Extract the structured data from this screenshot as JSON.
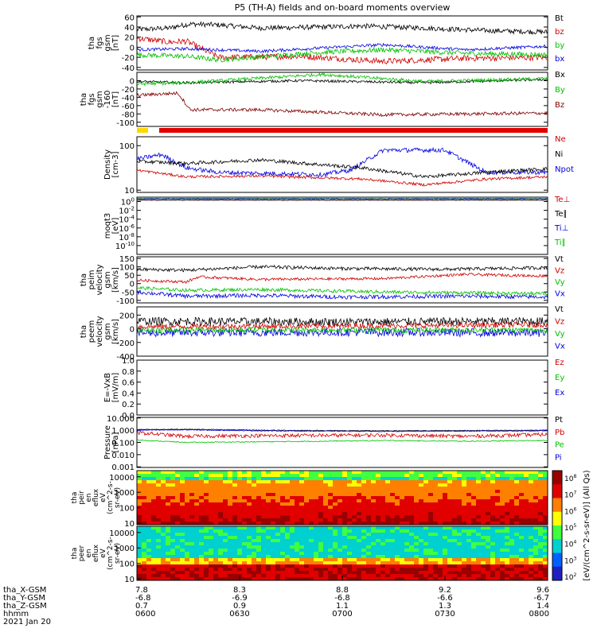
{
  "chart_data": {
    "type": "line",
    "title": "P5 (TH-A) fields and on-board moments overview",
    "footer": {
      "row_labels": [
        "tha_X-GSM",
        "tha_Y-GSM",
        "tha_Z-GSM",
        "hhmm"
      ],
      "date": "2021 Jan 20",
      "columns": [
        {
          "x": "7.8",
          "y": "-6.8",
          "z": "0.7",
          "t": "0600"
        },
        {
          "x": "8.3",
          "y": "-6.9",
          "z": "0.9",
          "t": "0630"
        },
        {
          "x": "8.8",
          "y": "-6.8",
          "z": "1.1",
          "t": "0700"
        },
        {
          "x": "9.2",
          "y": "-6.6",
          "z": "1.3",
          "t": "0730"
        },
        {
          "x": "9.6",
          "y": "-6.7",
          "z": "1.4",
          "t": "0800"
        }
      ]
    },
    "panels": [
      {
        "id": "fgs-gsm",
        "ylabel": [
          "tha",
          "fgs",
          "gsm",
          "[nT]"
        ],
        "ylim": [
          -45,
          62
        ],
        "ticks": [
          "60",
          "40",
          "20",
          "0",
          "-20",
          "-40"
        ],
        "tick_values": [
          60,
          40,
          20,
          0,
          -20,
          -40
        ],
        "legend": [
          {
            "name": "Bt",
            "color": "#000000"
          },
          {
            "name": "bz",
            "color": "#d00000"
          },
          {
            "name": "by",
            "color": "#00c000"
          },
          {
            "name": "bx",
            "color": "#0000e0"
          }
        ],
        "series": [
          {
            "name": "Bt",
            "color": "#000000",
            "noise": 5,
            "x": [
              0,
              0.08,
              0.1,
              0.13,
              0.2,
              0.3,
              0.45,
              0.55,
              0.7,
              0.85,
              1.0
            ],
            "values": [
              35,
              38,
              42,
              46,
              44,
              38,
              40,
              42,
              38,
              33,
              30
            ]
          },
          {
            "name": "bz",
            "color": "#d00000",
            "noise": 6,
            "x": [
              0,
              0.08,
              0.12,
              0.2,
              0.4,
              0.6,
              0.8,
              1.0
            ],
            "values": [
              18,
              10,
              12,
              -20,
              -18,
              -28,
              -22,
              -20
            ]
          },
          {
            "name": "by",
            "color": "#00c000",
            "noise": 5,
            "x": [
              0,
              0.12,
              0.2,
              0.45,
              0.6,
              0.8,
              1.0
            ],
            "values": [
              -15,
              -18,
              -25,
              -10,
              -5,
              -12,
              -15
            ]
          },
          {
            "name": "bx",
            "color": "#0000e0",
            "noise": 3,
            "x": [
              0,
              0.12,
              0.3,
              0.6,
              0.8,
              1.0
            ],
            "values": [
              -5,
              -3,
              -8,
              5,
              -5,
              2
            ]
          }
        ]
      },
      {
        "id": "fgs-gsm-160",
        "ylabel": [
          "tha",
          "fgs",
          "gsm",
          "-160",
          "[nT]"
        ],
        "ylim": [
          -110,
          20
        ],
        "ticks": [
          "0",
          "-20",
          "-40",
          "-60",
          "-80",
          "-100"
        ],
        "tick_values": [
          0,
          -20,
          -40,
          -60,
          -80,
          -100
        ],
        "legend": [
          {
            "name": "Bx",
            "color": "#000000"
          },
          {
            "name": "By",
            "color": "#00c000"
          },
          {
            "name": "Bz",
            "color": "#800000"
          }
        ],
        "series": [
          {
            "name": "Bx",
            "color": "#000000",
            "noise": 3,
            "x": [
              0,
              0.12,
              0.4,
              0.7,
              1.0
            ],
            "values": [
              -2,
              -5,
              0,
              -5,
              3
            ]
          },
          {
            "name": "By",
            "color": "#00c000",
            "noise": 4,
            "x": [
              0,
              0.12,
              0.45,
              0.7,
              1.0
            ],
            "values": [
              -8,
              -5,
              15,
              -2,
              5
            ]
          },
          {
            "name": "Bz",
            "color": "#800000",
            "noise": 4,
            "x": [
              0,
              0.1,
              0.13,
              0.3,
              0.6,
              0.8,
              1.0
            ],
            "values": [
              -35,
              -30,
              -70,
              -70,
              -82,
              -80,
              -78
            ]
          }
        ]
      },
      {
        "id": "density",
        "ylabel": [
          "Density",
          "[cm-3]"
        ],
        "ylim": [
          0.95,
          2.2
        ],
        "ticks": [
          "100",
          "10"
        ],
        "tick_values": [
          2,
          1
        ],
        "legend": [
          {
            "name": "Ne",
            "color": "#d00000"
          },
          {
            "name": "Ni",
            "color": "#000000"
          },
          {
            "name": "Npot",
            "color": "#0000e0"
          }
        ],
        "series": [
          {
            "name": "Npot",
            "color": "#0000e0",
            "noise": 0.05,
            "x": [
              0,
              0.06,
              0.12,
              0.2,
              0.45,
              0.52,
              0.6,
              0.75,
              0.85,
              1.0
            ],
            "values": [
              1.7,
              1.8,
              1.5,
              1.4,
              1.35,
              1.45,
              1.9,
              1.9,
              1.4,
              1.4
            ]
          },
          {
            "name": "Ni",
            "color": "#000000",
            "noise": 0.04,
            "x": [
              0,
              0.12,
              0.3,
              0.55,
              0.7,
              0.85,
              1.0
            ],
            "values": [
              1.65,
              1.6,
              1.68,
              1.5,
              1.3,
              1.4,
              1.48
            ]
          },
          {
            "name": "Ne",
            "color": "#d00000",
            "noise": 0.03,
            "x": [
              0,
              0.12,
              0.3,
              0.55,
              0.7,
              0.85,
              1.0
            ],
            "values": [
              1.45,
              1.3,
              1.32,
              1.25,
              1.12,
              1.25,
              1.3
            ]
          }
        ]
      },
      {
        "id": "moqt3",
        "ylabel": [
          "moqt3",
          "[eV]"
        ],
        "ylim": [
          -12,
          1
        ],
        "ticks": [
          "10^0",
          "10^-2",
          "10^-4",
          "10^-6",
          "10^-8",
          "10^-10"
        ],
        "tick_values": [
          0,
          -2,
          -4,
          -6,
          -8,
          -10
        ],
        "legend": [
          {
            "name": "Te⊥",
            "color": "#d00000"
          },
          {
            "name": "Te∥",
            "color": "#000000"
          },
          {
            "name": "Ti⊥",
            "color": "#0000e0"
          },
          {
            "name": "Ti∥",
            "color": "#00c000"
          }
        ],
        "series": [
          {
            "name": "Te⊥",
            "color": "#d00000",
            "noise": 0.05,
            "x": [
              0,
              1.0
            ],
            "values": [
              0.5,
              0.5
            ]
          },
          {
            "name": "Te∥",
            "color": "#000000",
            "noise": 0.05,
            "x": [
              0,
              1.0
            ],
            "values": [
              0.3,
              0.3
            ]
          },
          {
            "name": "Ti⊥",
            "color": "#0000e0",
            "noise": 0.05,
            "x": [
              0,
              1.0
            ],
            "values": [
              0.7,
              0.7
            ]
          },
          {
            "name": "Ti∥",
            "color": "#00c000",
            "noise": 0.05,
            "x": [
              0,
              1.0
            ],
            "values": [
              0.6,
              0.6
            ]
          }
        ]
      },
      {
        "id": "peim-velocity",
        "ylabel": [
          "tha",
          "peim",
          "velocity",
          "gsm",
          "[km/s]"
        ],
        "ylim": [
          -115,
          160
        ],
        "ticks": [
          "150",
          "100",
          "50",
          "0",
          "-50",
          "-100"
        ],
        "tick_values": [
          150,
          100,
          50,
          0,
          -50,
          -100
        ],
        "legend": [
          {
            "name": "Vt",
            "color": "#000000"
          },
          {
            "name": "Vz",
            "color": "#d00000"
          },
          {
            "name": "Vy",
            "color": "#00c000"
          },
          {
            "name": "Vx",
            "color": "#0000e0"
          }
        ],
        "series": [
          {
            "name": "Vt",
            "color": "#000000",
            "noise": 10,
            "x": [
              0,
              0.12,
              0.3,
              0.5,
              0.75,
              1.0
            ],
            "values": [
              85,
              80,
              100,
              90,
              85,
              95
            ]
          },
          {
            "name": "Vz",
            "color": "#d00000",
            "noise": 8,
            "x": [
              0,
              0.12,
              0.15,
              0.3,
              0.6,
              0.8,
              1.0
            ],
            "values": [
              20,
              10,
              40,
              25,
              30,
              55,
              45
            ]
          },
          {
            "name": "Vy",
            "color": "#00c000",
            "noise": 10,
            "x": [
              0,
              0.12,
              0.3,
              0.6,
              0.8,
              1.0
            ],
            "values": [
              -25,
              -40,
              -35,
              -50,
              -55,
              -60
            ]
          },
          {
            "name": "Vx",
            "color": "#0000e0",
            "noise": 12,
            "x": [
              0,
              0.12,
              0.3,
              0.5,
              0.8,
              1.0
            ],
            "values": [
              -50,
              -75,
              -70,
              -80,
              -75,
              -80
            ]
          }
        ]
      },
      {
        "id": "peem-velocity",
        "ylabel": [
          "tha",
          "peem",
          "velocity",
          "gsm",
          "[km/s]"
        ],
        "ylim": [
          -400,
          320
        ],
        "ticks": [
          "200",
          "0",
          "-200",
          "-400"
        ],
        "tick_values": [
          200,
          0,
          -200,
          -400
        ],
        "legend": [
          {
            "name": "Vt",
            "color": "#000000"
          },
          {
            "name": "Vz",
            "color": "#d00000"
          },
          {
            "name": "Vy",
            "color": "#00c000"
          },
          {
            "name": "Vx",
            "color": "#0000e0"
          }
        ],
        "series": [
          {
            "name": "Vt",
            "color": "#000000",
            "noise": 60,
            "x": [
              0,
              0.5,
              1.0
            ],
            "values": [
              110,
              100,
              110
            ]
          },
          {
            "name": "Vz",
            "color": "#d00000",
            "noise": 40,
            "x": [
              0,
              0.5,
              1.0
            ],
            "values": [
              30,
              40,
              60
            ]
          },
          {
            "name": "Vx",
            "color": "#0000e0",
            "noise": 60,
            "x": [
              0,
              0.5,
              1.0
            ],
            "values": [
              -60,
              -50,
              -60
            ]
          },
          {
            "name": "Vy",
            "color": "#00c000",
            "noise": 40,
            "x": [
              0,
              0.5,
              1.0
            ],
            "values": [
              -20,
              -15,
              -20
            ]
          }
        ]
      },
      {
        "id": "e-field",
        "ylabel": [
          "E=-VxB",
          "[mV/m]"
        ],
        "ylim": [
          0,
          1
        ],
        "ticks": [
          "1.0",
          "0.8",
          "0.6",
          "0.4",
          "0.2",
          "0.0"
        ],
        "tick_values": [
          1.0,
          0.8,
          0.6,
          0.4,
          0.2,
          0.0
        ],
        "legend": [
          {
            "name": "Ez",
            "color": "#d00000"
          },
          {
            "name": "Ey",
            "color": "#00c000"
          },
          {
            "name": "Ex",
            "color": "#0000e0"
          }
        ],
        "series": []
      },
      {
        "id": "pressure",
        "ylabel": [
          "Pressure",
          "[nPa]"
        ],
        "ylim": [
          -3.05,
          1.05
        ],
        "ticks": [
          "10.000",
          "1.000",
          "0.100",
          "0.010",
          "0.001"
        ],
        "tick_values": [
          1,
          0,
          -1,
          -2,
          -3
        ],
        "legend": [
          {
            "name": "Pt",
            "color": "#000000"
          },
          {
            "name": "Pb",
            "color": "#d00000"
          },
          {
            "name": "Pe",
            "color": "#00c000"
          },
          {
            "name": "Pi",
            "color": "#0000e0"
          }
        ],
        "series": [
          {
            "name": "Pt",
            "color": "#000000",
            "noise": 0.03,
            "x": [
              0,
              0.12,
              0.3,
              0.6,
              1.0
            ],
            "values": [
              0.05,
              0.08,
              0.0,
              -0.05,
              0.0
            ]
          },
          {
            "name": "Pi",
            "color": "#0000e0",
            "noise": 0.03,
            "x": [
              0,
              0.12,
              0.3,
              0.6,
              1.0
            ],
            "values": [
              0.0,
              0.03,
              -0.05,
              -0.1,
              -0.05
            ]
          },
          {
            "name": "Pb",
            "color": "#d00000",
            "noise": 0.15,
            "x": [
              0,
              0.12,
              0.3,
              0.6,
              0.8,
              1.0
            ],
            "values": [
              -0.2,
              -0.5,
              -0.45,
              -0.4,
              -0.5,
              -0.35
            ]
          },
          {
            "name": "Pe",
            "color": "#00c000",
            "noise": 0.04,
            "x": [
              0,
              0.12,
              0.3,
              0.6,
              0.8,
              1.0
            ],
            "values": [
              -0.8,
              -1.0,
              -0.95,
              -0.85,
              -0.9,
              -0.85
            ]
          }
        ]
      }
    ],
    "spectrograms": [
      {
        "id": "peir-en-eflux",
        "ylabel": [
          "tha",
          "peir",
          "en",
          "eflux",
          "eV",
          "(cm^2-s-",
          "sr-eV)"
        ],
        "ticks": [
          "10000",
          "1000",
          "100",
          "10"
        ],
        "tick_values": [
          4,
          3,
          2,
          1
        ],
        "ylim": [
          0.9,
          4.4
        ]
      },
      {
        "id": "peer-en-eflux",
        "ylabel": [
          "tha",
          "peer",
          "en",
          "eflux",
          "eV",
          "(cm^2-s-",
          "sr-eV)"
        ],
        "ticks": [
          "10000",
          "1000",
          "100",
          "10"
        ],
        "tick_values": [
          4,
          3,
          2,
          1
        ],
        "ylim": [
          0.9,
          4.4
        ]
      }
    ],
    "colorbar": {
      "label": "[eV/(cm^2-s-sr-eV)] (All Qs)",
      "ticks": [
        "10^8",
        "10^7",
        "10^6",
        "10^5",
        "10^4",
        "10^3",
        "10^2"
      ],
      "colors": [
        "#990000",
        "#e00000",
        "#ff8000",
        "#ffff00",
        "#40ff40",
        "#00d0d0",
        "#0060ff",
        "#2020c0"
      ]
    }
  }
}
